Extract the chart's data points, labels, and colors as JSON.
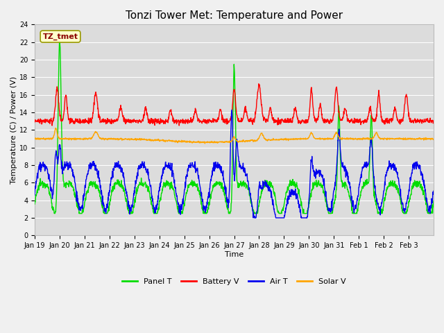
{
  "title": "Tonzi Tower Met: Temperature and Power",
  "xlabel": "Time",
  "ylabel": "Temperature (C) / Power (V)",
  "annotation": "TZ_tmet",
  "annotation_color": "#8B0000",
  "annotation_bg": "#FFFFCC",
  "annotation_edge": "#999900",
  "ylim": [
    0,
    24
  ],
  "yticks": [
    0,
    2,
    4,
    6,
    8,
    10,
    12,
    14,
    16,
    18,
    20,
    22,
    24
  ],
  "xtick_labels": [
    "Jan 19",
    "Jan 20",
    "Jan 21",
    "Jan 22",
    "Jan 23",
    "Jan 24",
    "Jan 25",
    "Jan 26",
    "Jan 27",
    "Jan 28",
    "Jan 29",
    "Jan 30",
    "Jan 31",
    "Feb 1",
    "Feb 2",
    "Feb 3"
  ],
  "colors": {
    "panel_t": "#00DD00",
    "battery_v": "#FF0000",
    "air_t": "#0000EE",
    "solar_v": "#FFA500"
  },
  "legend_labels": [
    "Panel T",
    "Battery V",
    "Air T",
    "Solar V"
  ],
  "fig_bg": "#F0F0F0",
  "plot_bg": "#DCDCDC",
  "grid_color": "#FFFFFF",
  "title_fontsize": 11,
  "label_fontsize": 8,
  "tick_fontsize": 7,
  "legend_fontsize": 8,
  "n_days": 16,
  "pts_per_day": 96
}
